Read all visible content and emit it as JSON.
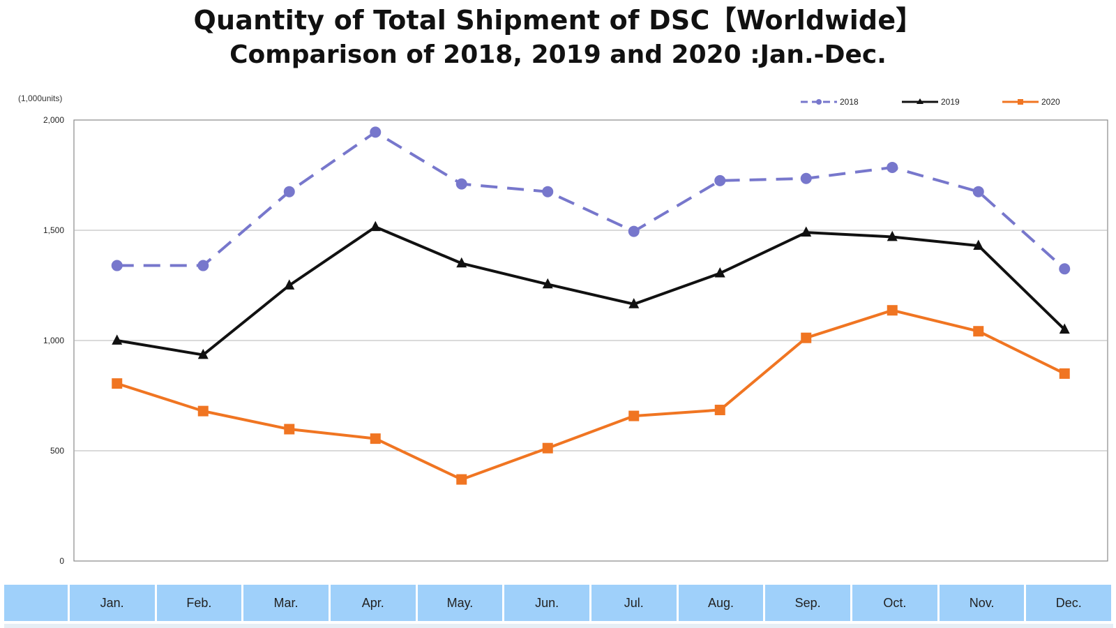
{
  "title_line1": "Quantity of Total Shipment of DSC【Worldwide】",
  "title_line2": "Comparison of 2018, 2019 and 2020 :Jan.-Dec.",
  "unit_label": "(1,000units)",
  "chart_data": {
    "type": "line",
    "title": "Quantity of Total Shipment of DSC【Worldwide】 Comparison of 2018, 2019 and 2020 :Jan.-Dec.",
    "xlabel": "",
    "ylabel": "(1,000units)",
    "categories": [
      "Jan.",
      "Feb.",
      "Mar.",
      "Apr.",
      "May.",
      "Jun.",
      "Jul.",
      "Aug.",
      "Sep.",
      "Oct.",
      "Nov.",
      "Dec."
    ],
    "ylim": [
      0,
      2000
    ],
    "yticks": [
      0,
      500,
      1000,
      1500,
      2000
    ],
    "ytick_labels": [
      "0",
      "500",
      "1,000",
      "1,500",
      "2,000"
    ],
    "grid": true,
    "legend_position": "top-right",
    "series": [
      {
        "name": "2018",
        "color": "#7777cc",
        "line_style": "dashed",
        "marker": "circle",
        "values": [
          1340,
          1340,
          1675,
          1945,
          1710,
          1675,
          1495,
          1725,
          1735,
          1785,
          1675,
          1325
        ]
      },
      {
        "name": "2019",
        "color": "#111111",
        "line_style": "solid",
        "marker": "triangle",
        "values": [
          1000,
          935,
          1250,
          1515,
          1350,
          1255,
          1165,
          1305,
          1490,
          1470,
          1430,
          1050
        ]
      },
      {
        "name": "2020",
        "color": "#f07522",
        "line_style": "solid",
        "marker": "square",
        "values": [
          805,
          680,
          598,
          555,
          370,
          512,
          658,
          685,
          1012,
          1137,
          1042,
          850
        ]
      }
    ]
  },
  "table": {
    "header_cells": [
      "",
      "Jan.",
      "Feb.",
      "Mar.",
      "Apr.",
      "May.",
      "Jun.",
      "Jul.",
      "Aug.",
      "Sep.",
      "Oct.",
      "Nov.",
      "Dec."
    ]
  }
}
